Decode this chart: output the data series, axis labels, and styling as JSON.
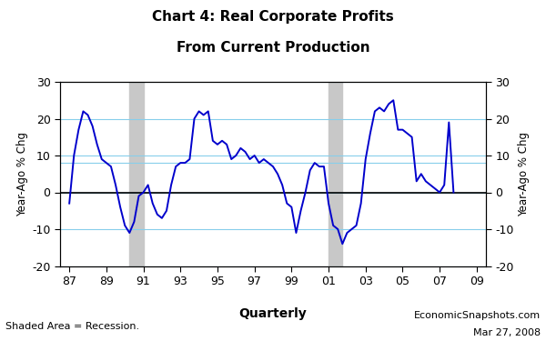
{
  "title_line1": "Chart 4: Real Corporate Profits",
  "title_line2": "From Current Production",
  "ylabel_left": "Year-Ago % Chg",
  "ylabel_right": "Year-Ago % Chg",
  "xlabel": "Quarterly",
  "footnote_left": "Shaded Area = Recession.",
  "footnote_right1": "EconomicSnapshots.com",
  "footnote_right2": "Mar 27, 2008",
  "ylim": [
    -20,
    30
  ],
  "yticks": [
    -20,
    -10,
    0,
    10,
    20,
    30
  ],
  "line_color": "#0000CC",
  "recession_color": "#C8C8C8",
  "hline_color": "#87CEEB",
  "hline_value": 8,
  "recessions": [
    {
      "start": 1990.25,
      "end": 1991.0
    },
    {
      "start": 2001.0,
      "end": 2001.75
    }
  ],
  "quarters": [
    1987.0,
    1987.25,
    1987.5,
    1987.75,
    1988.0,
    1988.25,
    1988.5,
    1988.75,
    1989.0,
    1989.25,
    1989.5,
    1989.75,
    1990.0,
    1990.25,
    1990.5,
    1990.75,
    1991.0,
    1991.25,
    1991.5,
    1991.75,
    1992.0,
    1992.25,
    1992.5,
    1992.75,
    1993.0,
    1993.25,
    1993.5,
    1993.75,
    1994.0,
    1994.25,
    1994.5,
    1994.75,
    1995.0,
    1995.25,
    1995.5,
    1995.75,
    1996.0,
    1996.25,
    1996.5,
    1996.75,
    1997.0,
    1997.25,
    1997.5,
    1997.75,
    1998.0,
    1998.25,
    1998.5,
    1998.75,
    1999.0,
    1999.25,
    1999.5,
    1999.75,
    2000.0,
    2000.25,
    2000.5,
    2000.75,
    2001.0,
    2001.25,
    2001.5,
    2001.75,
    2002.0,
    2002.25,
    2002.5,
    2002.75,
    2003.0,
    2003.25,
    2003.5,
    2003.75,
    2004.0,
    2004.25,
    2004.5,
    2004.75,
    2005.0,
    2005.25,
    2005.5,
    2005.75,
    2006.0,
    2006.25,
    2006.5,
    2006.75,
    2007.0,
    2007.25,
    2007.5,
    2007.75
  ],
  "values": [
    -3,
    10,
    17,
    22,
    21,
    18,
    13,
    9,
    8,
    7,
    2,
    -4,
    -9,
    -11,
    -8,
    -1,
    0,
    2,
    -3,
    -6,
    -7,
    -5,
    2,
    7,
    8,
    8,
    9,
    20,
    22,
    21,
    22,
    14,
    13,
    14,
    13,
    9,
    10,
    12,
    11,
    9,
    10,
    8,
    9,
    8,
    7,
    5,
    2,
    -3,
    -4,
    -11,
    -5,
    0,
    6,
    8,
    7,
    7,
    -3,
    -9,
    -10,
    -14,
    -11,
    -10,
    -9,
    -3,
    9,
    16,
    22,
    23,
    22,
    24,
    25,
    17,
    17,
    16,
    15,
    3,
    5,
    3,
    2,
    1,
    0,
    2,
    19,
    0
  ],
  "xtick_positions": [
    1987,
    1989,
    1991,
    1993,
    1995,
    1997,
    1999,
    2001,
    2003,
    2005,
    2007,
    2009
  ],
  "xtick_labels": [
    "87",
    "89",
    "91",
    "93",
    "95",
    "97",
    "99",
    "01",
    "03",
    "05",
    "07",
    "09"
  ],
  "xlim": [
    1986.5,
    2009.5
  ]
}
